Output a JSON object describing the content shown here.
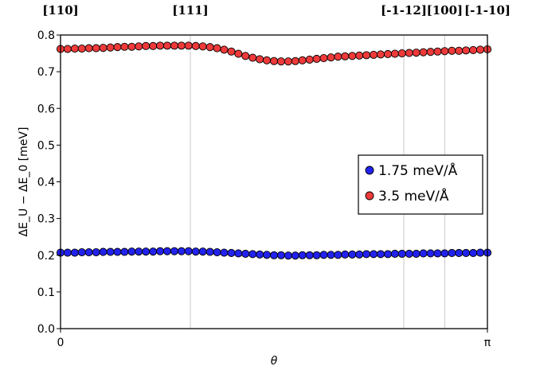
{
  "chart_data": {
    "type": "scatter",
    "title": "",
    "xlabel": "θ",
    "ylabel": "ΔE_U − ΔE_0 [meV]",
    "xlim": [
      0,
      3.14159
    ],
    "ylim": [
      0.0,
      0.8
    ],
    "x_ticks": [
      {
        "value": 0,
        "label": "0"
      },
      {
        "value": 3.14159,
        "label": "π"
      }
    ],
    "y_ticks": [
      {
        "value": 0.0,
        "label": "0.0"
      },
      {
        "value": 0.1,
        "label": "0.1"
      },
      {
        "value": 0.2,
        "label": "0.2"
      },
      {
        "value": 0.3,
        "label": "0.3"
      },
      {
        "value": 0.4,
        "label": "0.4"
      },
      {
        "value": 0.5,
        "label": "0.5"
      },
      {
        "value": 0.6,
        "label": "0.6"
      },
      {
        "value": 0.7,
        "label": "0.7"
      },
      {
        "value": 0.8,
        "label": "0.8"
      }
    ],
    "direction_labels": [
      {
        "value": 0.0,
        "label": "[110]",
        "line": false
      },
      {
        "value": 0.9553,
        "label": "[111]",
        "line": true
      },
      {
        "value": 2.5261,
        "label": "[-1-12]",
        "line": true
      },
      {
        "value": 2.8274,
        "label": "[100]",
        "line": true
      },
      {
        "value": 3.14159,
        "label": "[-1-10]",
        "line": false
      }
    ],
    "legend_position": "center-right",
    "series": [
      {
        "name": "1.75 meV/Å",
        "color": "#2222ee",
        "points": [
          [
            0.0,
            0.207
          ],
          [
            0.052,
            0.207
          ],
          [
            0.105,
            0.207
          ],
          [
            0.157,
            0.208
          ],
          [
            0.209,
            0.208
          ],
          [
            0.262,
            0.208
          ],
          [
            0.314,
            0.209
          ],
          [
            0.367,
            0.209
          ],
          [
            0.419,
            0.209
          ],
          [
            0.471,
            0.209
          ],
          [
            0.524,
            0.21
          ],
          [
            0.576,
            0.21
          ],
          [
            0.628,
            0.21
          ],
          [
            0.681,
            0.21
          ],
          [
            0.733,
            0.211
          ],
          [
            0.785,
            0.211
          ],
          [
            0.838,
            0.211
          ],
          [
            0.89,
            0.211
          ],
          [
            0.942,
            0.211
          ],
          [
            0.995,
            0.21
          ],
          [
            1.047,
            0.21
          ],
          [
            1.1,
            0.209
          ],
          [
            1.152,
            0.208
          ],
          [
            1.204,
            0.207
          ],
          [
            1.257,
            0.206
          ],
          [
            1.309,
            0.205
          ],
          [
            1.361,
            0.204
          ],
          [
            1.414,
            0.203
          ],
          [
            1.466,
            0.202
          ],
          [
            1.518,
            0.201
          ],
          [
            1.571,
            0.2
          ],
          [
            1.623,
            0.2
          ],
          [
            1.676,
            0.199
          ],
          [
            1.728,
            0.199
          ],
          [
            1.78,
            0.2
          ],
          [
            1.833,
            0.2
          ],
          [
            1.885,
            0.2
          ],
          [
            1.937,
            0.201
          ],
          [
            1.99,
            0.201
          ],
          [
            2.042,
            0.201
          ],
          [
            2.094,
            0.202
          ],
          [
            2.147,
            0.202
          ],
          [
            2.199,
            0.202
          ],
          [
            2.251,
            0.203
          ],
          [
            2.304,
            0.203
          ],
          [
            2.356,
            0.203
          ],
          [
            2.409,
            0.203
          ],
          [
            2.461,
            0.204
          ],
          [
            2.513,
            0.204
          ],
          [
            2.566,
            0.204
          ],
          [
            2.618,
            0.204
          ],
          [
            2.67,
            0.205
          ],
          [
            2.723,
            0.205
          ],
          [
            2.775,
            0.205
          ],
          [
            2.827,
            0.205
          ],
          [
            2.88,
            0.206
          ],
          [
            2.932,
            0.206
          ],
          [
            2.984,
            0.206
          ],
          [
            3.037,
            0.206
          ],
          [
            3.089,
            0.207
          ],
          [
            3.142,
            0.207
          ]
        ]
      },
      {
        "name": "3.5 meV/Å",
        "color": "#ee3a3a",
        "points": [
          [
            0.0,
            0.762
          ],
          [
            0.052,
            0.762
          ],
          [
            0.105,
            0.763
          ],
          [
            0.157,
            0.763
          ],
          [
            0.209,
            0.764
          ],
          [
            0.262,
            0.764
          ],
          [
            0.314,
            0.765
          ],
          [
            0.367,
            0.766
          ],
          [
            0.419,
            0.767
          ],
          [
            0.471,
            0.768
          ],
          [
            0.524,
            0.768
          ],
          [
            0.576,
            0.769
          ],
          [
            0.628,
            0.77
          ],
          [
            0.681,
            0.77
          ],
          [
            0.733,
            0.771
          ],
          [
            0.785,
            0.771
          ],
          [
            0.838,
            0.771
          ],
          [
            0.89,
            0.771
          ],
          [
            0.942,
            0.771
          ],
          [
            0.995,
            0.77
          ],
          [
            1.047,
            0.769
          ],
          [
            1.1,
            0.767
          ],
          [
            1.152,
            0.764
          ],
          [
            1.204,
            0.76
          ],
          [
            1.257,
            0.755
          ],
          [
            1.309,
            0.749
          ],
          [
            1.361,
            0.743
          ],
          [
            1.414,
            0.738
          ],
          [
            1.466,
            0.734
          ],
          [
            1.518,
            0.731
          ],
          [
            1.571,
            0.729
          ],
          [
            1.623,
            0.728
          ],
          [
            1.676,
            0.728
          ],
          [
            1.728,
            0.729
          ],
          [
            1.78,
            0.731
          ],
          [
            1.833,
            0.733
          ],
          [
            1.885,
            0.735
          ],
          [
            1.937,
            0.737
          ],
          [
            1.99,
            0.739
          ],
          [
            2.042,
            0.741
          ],
          [
            2.094,
            0.742
          ],
          [
            2.147,
            0.743
          ],
          [
            2.199,
            0.744
          ],
          [
            2.251,
            0.745
          ],
          [
            2.304,
            0.746
          ],
          [
            2.356,
            0.747
          ],
          [
            2.409,
            0.748
          ],
          [
            2.461,
            0.749
          ],
          [
            2.513,
            0.75
          ],
          [
            2.566,
            0.751
          ],
          [
            2.618,
            0.752
          ],
          [
            2.67,
            0.753
          ],
          [
            2.723,
            0.754
          ],
          [
            2.775,
            0.755
          ],
          [
            2.827,
            0.756
          ],
          [
            2.88,
            0.757
          ],
          [
            2.932,
            0.757
          ],
          [
            2.984,
            0.758
          ],
          [
            3.037,
            0.759
          ],
          [
            3.089,
            0.76
          ],
          [
            3.142,
            0.761
          ]
        ]
      }
    ]
  }
}
